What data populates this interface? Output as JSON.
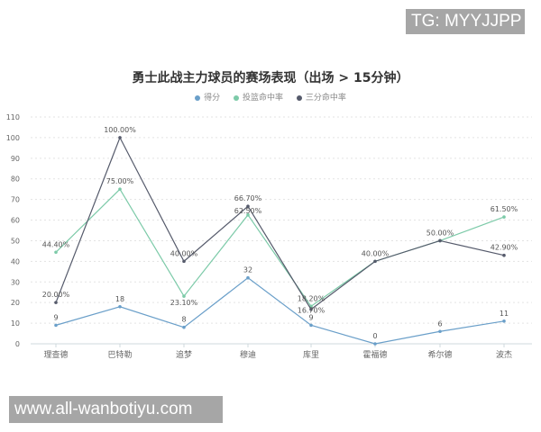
{
  "watermarks": {
    "top": "TG: MYYJJPP",
    "bottom": "www.all-wanbotiyu.com"
  },
  "legend": [
    {
      "label": "得分",
      "color": "#6a9fc9"
    },
    {
      "label": "投篮命中率",
      "color": "#7ccaa8"
    },
    {
      "label": "三分命中率",
      "color": "#555a6b"
    }
  ],
  "chart_data": {
    "type": "line",
    "title": "勇士此战主力球员的赛场表现（出场 > 15分钟）",
    "xlabel": "",
    "ylabel": "",
    "ylim": [
      0,
      110
    ],
    "yticks": [
      0,
      10,
      20,
      30,
      40,
      50,
      60,
      70,
      80,
      90,
      100,
      110
    ],
    "grid": true,
    "legend_position": "top",
    "categories": [
      "理查德",
      "巴特勒",
      "追梦",
      "穆迪",
      "库里",
      "霍福德",
      "希尔德",
      "波杰"
    ],
    "series": [
      {
        "name": "得分",
        "color": "#6a9fc9",
        "values": [
          9,
          18,
          8,
          32,
          9,
          0,
          6,
          11
        ],
        "labels": [
          "9",
          "18",
          "8",
          "32",
          "9",
          "0",
          "6",
          "11"
        ]
      },
      {
        "name": "投篮命中率",
        "color": "#7ccaa8",
        "values": [
          44.4,
          75.0,
          23.1,
          62.5,
          18.2,
          40.0,
          50.0,
          61.5
        ],
        "labels": [
          "44.40%",
          "75.00%",
          "23.10%",
          "62.50%",
          "18.20%",
          "",
          "",
          "61.50%"
        ]
      },
      {
        "name": "三分命中率",
        "color": "#555a6b",
        "values": [
          20.0,
          100.0,
          40.0,
          66.7,
          16.7,
          40.0,
          50.0,
          42.9
        ],
        "labels": [
          "20.00%",
          "100.00%",
          "40.00%",
          "66.70%",
          "16.70%",
          "40.00%",
          "50.00%",
          "42.90%"
        ]
      }
    ]
  }
}
